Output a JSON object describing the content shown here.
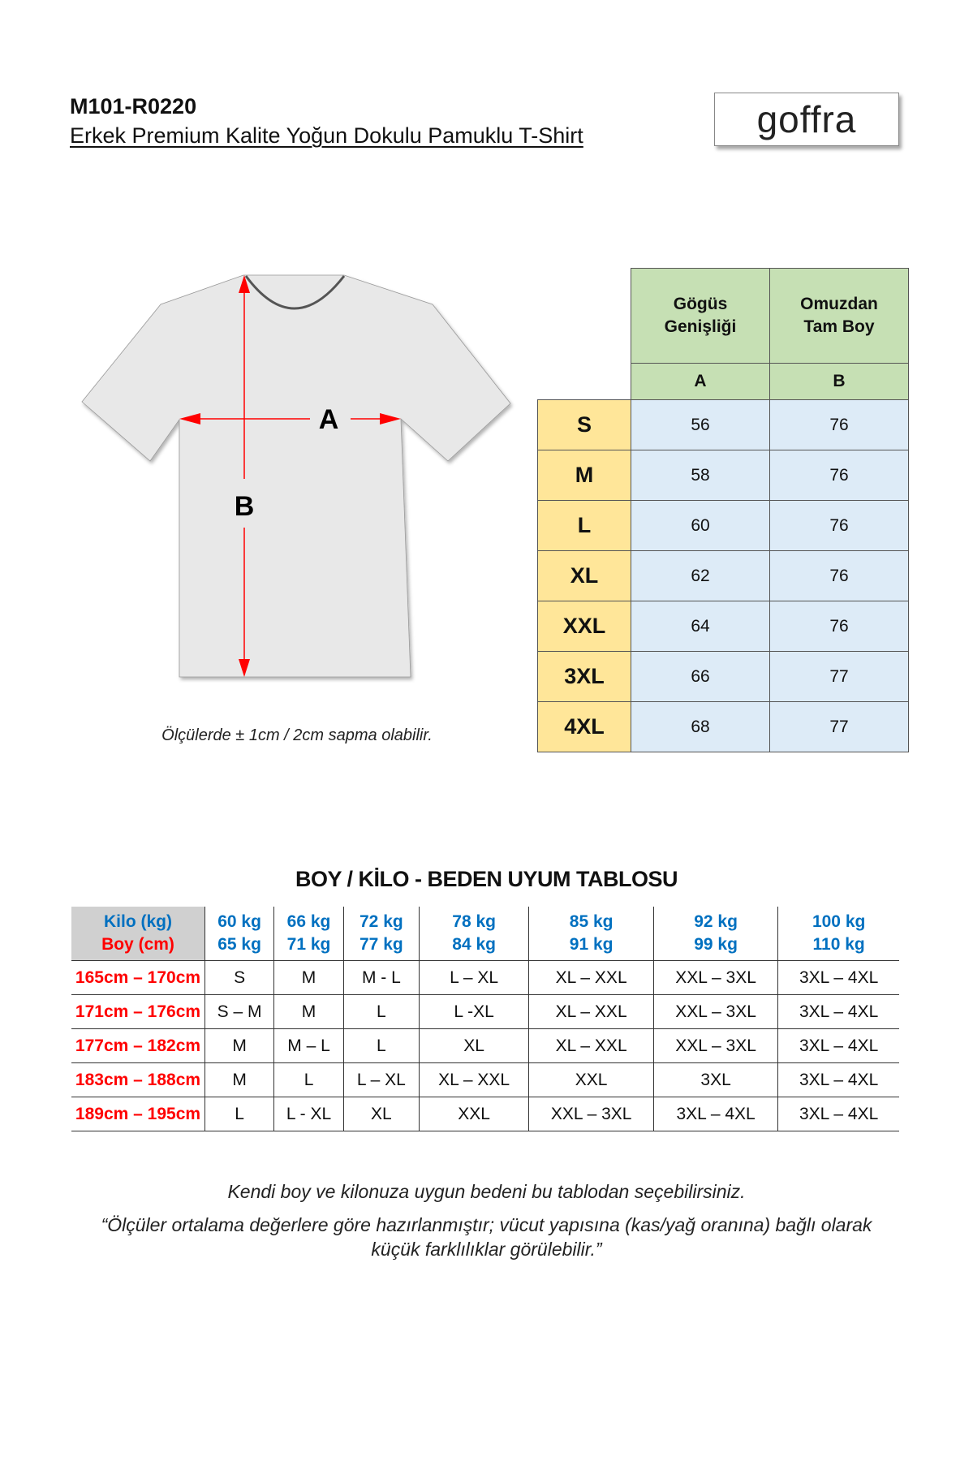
{
  "header": {
    "code": "M101-R0220",
    "subtitle": "Erkek Premium Kalite Yoğun Dokulu Pamuklu T-Shirt",
    "logo": "goffra"
  },
  "diagram": {
    "label_a": "A",
    "label_b": "B",
    "arrow_color": "#ff0000",
    "shirt_color": "#e8e8e8",
    "note": "Ölçülerde ± 1cm / 2cm sapma olabilir."
  },
  "size_table": {
    "col_headers": [
      {
        "line1": "Gögüs",
        "line2": "Genişliği",
        "code": "A"
      },
      {
        "line1": "Omuzdan",
        "line2": "Tam Boy",
        "code": "B"
      }
    ],
    "rows": [
      {
        "size": "S",
        "a": "56",
        "b": "76"
      },
      {
        "size": "M",
        "a": "58",
        "b": "76"
      },
      {
        "size": "L",
        "a": "60",
        "b": "76"
      },
      {
        "size": "XL",
        "a": "62",
        "b": "76"
      },
      {
        "size": "XXL",
        "a": "64",
        "b": "76"
      },
      {
        "size": "3XL",
        "a": "66",
        "b": "77"
      },
      {
        "size": "4XL",
        "a": "68",
        "b": "77"
      }
    ],
    "colors": {
      "header": "#c6e0b4",
      "size": "#ffe699",
      "value": "#ddebf7"
    }
  },
  "fit_table": {
    "title": "BOY / KİLO - BEDEN UYUM TABLOSU",
    "corner_top": "Kilo (kg)",
    "corner_bottom": "Boy (cm)",
    "weights": [
      [
        "60 kg",
        "65 kg"
      ],
      [
        "66 kg",
        "71 kg"
      ],
      [
        "72 kg",
        "77 kg"
      ],
      [
        "78 kg",
        "84 kg"
      ],
      [
        "85 kg",
        "91 kg"
      ],
      [
        "92 kg",
        "99 kg"
      ],
      [
        "100 kg",
        "110 kg"
      ]
    ],
    "rows": [
      {
        "height": "165cm – 170cm",
        "cells": [
          "S",
          "M",
          "M - L",
          "L – XL",
          "XL – XXL",
          "XXL – 3XL",
          "3XL – 4XL"
        ]
      },
      {
        "height": "171cm – 176cm",
        "cells": [
          "S – M",
          "M",
          "L",
          "L -XL",
          "XL – XXL",
          "XXL – 3XL",
          "3XL – 4XL"
        ]
      },
      {
        "height": "177cm – 182cm",
        "cells": [
          "M",
          "M – L",
          "L",
          "XL",
          "XL – XXL",
          "XXL – 3XL",
          "3XL – 4XL"
        ]
      },
      {
        "height": "183cm – 188cm",
        "cells": [
          "M",
          "L",
          "L – XL",
          "XL – XXL",
          "XXL",
          "3XL",
          "3XL – 4XL"
        ]
      },
      {
        "height": "189cm – 195cm",
        "cells": [
          "L",
          "L - XL",
          "XL",
          "XXL",
          "XXL – 3XL",
          "3XL – 4XL",
          "3XL – 4XL"
        ]
      }
    ],
    "colors": {
      "weight_text": "#0070c0",
      "height_text": "#ff0000",
      "corner_bg": "#d0d0d0"
    }
  },
  "footer": {
    "line1": "Kendi boy ve kilonuza uygun bedeni bu tablodan seçebilirsiniz.",
    "line2": "“Ölçüler ortalama değerlere göre hazırlanmıştır; vücut yapısına (kas/yağ oranına) bağlı olarak",
    "line3": "küçük farklılıklar görülebilir.”"
  }
}
